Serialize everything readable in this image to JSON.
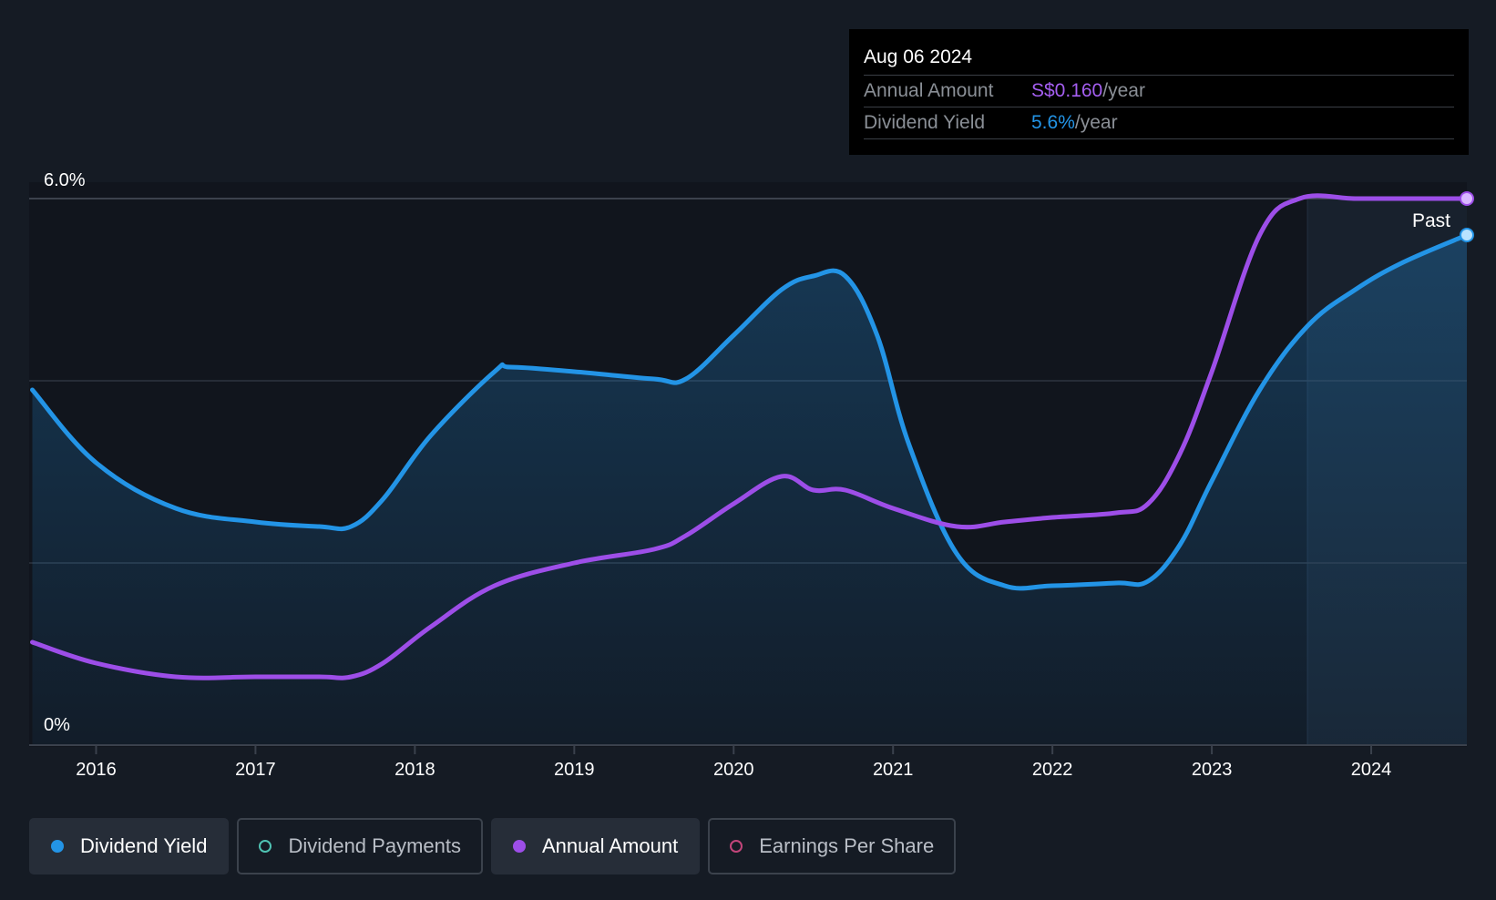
{
  "colors": {
    "background": "#151b24",
    "dividend_yield": "#2394e6",
    "annual_amount": "#9d4ee8",
    "dividend_payments": "#4fc3b3",
    "earnings_per_share": "#c2457a",
    "grid": "#2e3540",
    "axis_text": "#ffffff"
  },
  "tooltip": {
    "date": "Aug 06 2024",
    "annual_amount_label": "Annual Amount",
    "annual_amount_value": "S$0.160",
    "annual_amount_unit": "/year",
    "dividend_yield_label": "Dividend Yield",
    "dividend_yield_value": "5.6%",
    "dividend_yield_unit": "/year"
  },
  "past_label": "Past",
  "legend": [
    {
      "label": "Dividend Yield",
      "state": "active",
      "color": "#2394e6",
      "filled": true
    },
    {
      "label": "Dividend Payments",
      "state": "inactive",
      "color": "#4fc3b3",
      "filled": false
    },
    {
      "label": "Annual Amount",
      "state": "active",
      "color": "#9d4ee8",
      "filled": true
    },
    {
      "label": "Earnings Per Share",
      "state": "inactive",
      "color": "#c2457a",
      "filled": false
    }
  ],
  "chart_data": {
    "type": "line",
    "xlim": [
      2015.58,
      2024.6
    ],
    "ylim": [
      0,
      6.0
    ],
    "y_tick_labels": [
      "0%",
      "6.0%"
    ],
    "y_gridlines": [
      2.0,
      4.0,
      6.0
    ],
    "x_ticks": [
      2016,
      2017,
      2018,
      2019,
      2020,
      2021,
      2022,
      2023,
      2024
    ],
    "x_tick_labels": [
      "2016",
      "2017",
      "2018",
      "2019",
      "2020",
      "2021",
      "2022",
      "2023",
      "2024"
    ],
    "forecast_start": 2023.6,
    "series": [
      {
        "name": "Dividend Yield",
        "unit": "%",
        "area": true,
        "x": [
          2015.6,
          2016.0,
          2016.5,
          2017.0,
          2017.4,
          2017.6,
          2017.8,
          2018.1,
          2018.5,
          2018.6,
          2019.0,
          2019.5,
          2019.7,
          2020.0,
          2020.3,
          2020.5,
          2020.7,
          2020.9,
          2021.1,
          2021.4,
          2021.7,
          2022.0,
          2022.4,
          2022.6,
          2022.8,
          2023.0,
          2023.3,
          2023.6,
          2023.9,
          2024.2,
          2024.6
        ],
        "y": [
          3.9,
          3.1,
          2.6,
          2.45,
          2.4,
          2.4,
          2.7,
          3.4,
          4.1,
          4.15,
          4.1,
          4.02,
          4.02,
          4.5,
          5.0,
          5.15,
          5.15,
          4.5,
          3.3,
          2.1,
          1.75,
          1.75,
          1.78,
          1.8,
          2.2,
          2.9,
          3.9,
          4.6,
          5.0,
          5.3,
          5.6
        ]
      },
      {
        "name": "Annual Amount",
        "unit": "S$",
        "area": false,
        "x": [
          2015.6,
          2016.0,
          2016.5,
          2017.0,
          2017.4,
          2017.6,
          2017.8,
          2018.1,
          2018.5,
          2019.0,
          2019.5,
          2019.7,
          2020.0,
          2020.3,
          2020.5,
          2020.7,
          2021.0,
          2021.4,
          2021.7,
          2022.0,
          2022.4,
          2022.6,
          2022.8,
          2023.0,
          2023.3,
          2023.55,
          2023.9,
          2024.2,
          2024.6
        ],
        "y": [
          1.13,
          0.9,
          0.75,
          0.75,
          0.75,
          0.75,
          0.9,
          1.3,
          1.75,
          2.0,
          2.15,
          2.3,
          2.65,
          2.95,
          2.8,
          2.8,
          2.6,
          2.4,
          2.45,
          2.5,
          2.55,
          2.65,
          3.2,
          4.1,
          5.6,
          6.0,
          6.0,
          6.0,
          6.0
        ]
      }
    ]
  }
}
